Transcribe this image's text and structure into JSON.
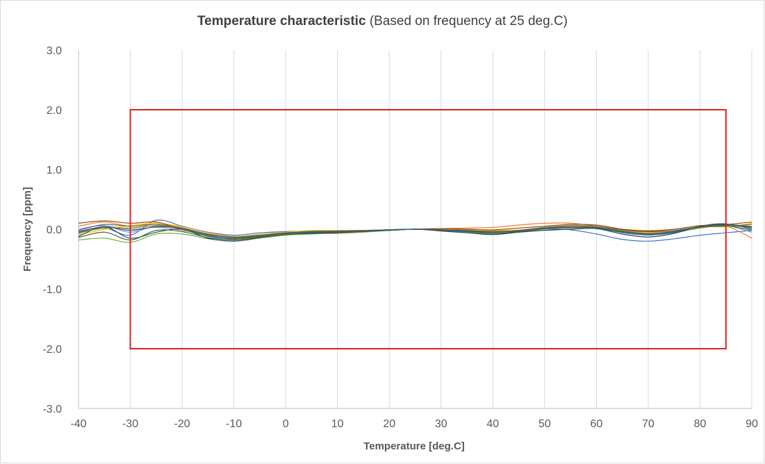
{
  "chart_data": {
    "type": "line",
    "title": "Temperature characteristic",
    "subtitle": "(Based on frequency at 25 deg.C)",
    "xlabel": "Temperature [deg.C]",
    "ylabel": "Frequency [ppm]",
    "xlim": [
      -40,
      90
    ],
    "ylim": [
      -3.0,
      3.0
    ],
    "x_ticks": [
      "-40",
      "-30",
      "-20",
      "-10",
      "0",
      "10",
      "20",
      "30",
      "40",
      "50",
      "60",
      "70",
      "80",
      "90"
    ],
    "y_ticks": [
      "3.0",
      "2.0",
      "1.0",
      "0.0",
      "-1.0",
      "-2.0",
      "-3.0"
    ],
    "grid": "vertical",
    "legend": "none",
    "spec_box": {
      "x": [
        -30,
        85
      ],
      "y": [
        -2.0,
        2.0
      ],
      "color": "#e02020"
    },
    "x": [
      -40,
      -35,
      -30,
      -25,
      -20,
      -15,
      -10,
      -5,
      0,
      5,
      10,
      15,
      20,
      25,
      30,
      35,
      40,
      45,
      50,
      55,
      60,
      65,
      70,
      75,
      80,
      85,
      90
    ],
    "series": [
      {
        "color": "#4472c4",
        "values": [
          -0.05,
          0.02,
          -0.1,
          0.15,
          0.05,
          -0.05,
          -0.1,
          -0.06,
          -0.04,
          -0.03,
          -0.02,
          -0.02,
          -0.01,
          0.0,
          -0.01,
          -0.02,
          -0.03,
          -0.02,
          0.0,
          -0.01,
          -0.08,
          -0.17,
          -0.2,
          -0.16,
          -0.1,
          -0.06,
          -0.02
        ]
      },
      {
        "color": "#ed7d31",
        "values": [
          0.05,
          0.12,
          0.05,
          0.1,
          0.02,
          -0.08,
          -0.14,
          -0.11,
          -0.08,
          -0.07,
          -0.07,
          -0.05,
          -0.02,
          0.0,
          0.01,
          0.02,
          0.03,
          0.07,
          0.1,
          0.1,
          0.05,
          -0.02,
          -0.05,
          -0.03,
          0.02,
          0.05,
          -0.15
        ]
      },
      {
        "color": "#a5a5a5",
        "values": [
          -0.08,
          0.05,
          0.0,
          0.03,
          -0.02,
          -0.1,
          -0.15,
          -0.11,
          -0.07,
          -0.05,
          -0.04,
          -0.03,
          -0.01,
          0.0,
          -0.02,
          -0.04,
          -0.06,
          -0.04,
          0.02,
          0.04,
          0.03,
          -0.04,
          -0.08,
          -0.05,
          0.04,
          0.07,
          0.05
        ]
      },
      {
        "color": "#ffc000",
        "values": [
          -0.1,
          0.0,
          0.06,
          0.1,
          0.04,
          -0.06,
          -0.12,
          -0.08,
          -0.05,
          -0.02,
          -0.02,
          -0.02,
          -0.01,
          0.0,
          0.0,
          -0.01,
          -0.02,
          -0.01,
          0.03,
          0.05,
          0.04,
          0.0,
          -0.02,
          0.0,
          0.05,
          0.04,
          0.1
        ]
      },
      {
        "color": "#5b9bd5",
        "values": [
          0.0,
          0.06,
          -0.05,
          0.05,
          0.0,
          -0.12,
          -0.17,
          -0.12,
          -0.08,
          -0.05,
          -0.05,
          -0.04,
          -0.02,
          0.0,
          -0.01,
          -0.03,
          -0.05,
          -0.03,
          0.01,
          0.03,
          0.02,
          -0.06,
          -0.1,
          -0.06,
          0.02,
          0.06,
          -0.05
        ]
      },
      {
        "color": "#70ad47",
        "values": [
          -0.18,
          -0.15,
          -0.22,
          -0.08,
          -0.08,
          -0.16,
          -0.2,
          -0.15,
          -0.1,
          -0.08,
          -0.06,
          -0.04,
          -0.02,
          0.0,
          -0.02,
          -0.05,
          -0.08,
          -0.05,
          0.0,
          0.02,
          0.01,
          -0.05,
          -0.08,
          -0.05,
          0.02,
          0.07,
          0.02
        ]
      },
      {
        "color": "#264478",
        "values": [
          -0.12,
          0.04,
          -0.15,
          -0.05,
          0.0,
          -0.15,
          -0.2,
          -0.14,
          -0.09,
          -0.07,
          -0.06,
          -0.04,
          -0.02,
          0.0,
          -0.03,
          -0.06,
          -0.09,
          -0.05,
          -0.02,
          0.0,
          0.01,
          -0.08,
          -0.13,
          -0.07,
          0.05,
          0.09,
          0.0
        ]
      },
      {
        "color": "#9e480e",
        "values": [
          0.1,
          0.14,
          0.1,
          0.12,
          0.0,
          -0.09,
          -0.13,
          -0.1,
          -0.07,
          -0.05,
          -0.04,
          -0.03,
          -0.01,
          0.0,
          0.01,
          0.0,
          -0.01,
          0.02,
          0.05,
          0.08,
          0.07,
          0.0,
          -0.03,
          0.0,
          0.06,
          0.08,
          0.12
        ]
      },
      {
        "color": "#636363",
        "values": [
          -0.02,
          0.08,
          0.05,
          0.08,
          0.02,
          -0.08,
          -0.13,
          -0.1,
          -0.06,
          -0.04,
          -0.03,
          -0.02,
          -0.01,
          0.0,
          -0.01,
          -0.02,
          -0.04,
          -0.02,
          0.03,
          0.06,
          0.05,
          -0.01,
          -0.04,
          -0.02,
          0.04,
          0.06,
          0.03
        ]
      },
      {
        "color": "#997300",
        "values": [
          -0.06,
          0.02,
          0.02,
          0.06,
          0.02,
          -0.1,
          -0.16,
          -0.12,
          -0.08,
          -0.05,
          -0.04,
          -0.03,
          -0.01,
          0.0,
          -0.01,
          -0.03,
          -0.04,
          -0.03,
          0.02,
          0.04,
          0.03,
          -0.03,
          -0.07,
          -0.04,
          0.03,
          0.05,
          0.08
        ]
      },
      {
        "color": "#43682b",
        "values": [
          -0.14,
          -0.05,
          -0.18,
          -0.02,
          -0.04,
          -0.14,
          -0.18,
          -0.13,
          -0.09,
          -0.06,
          -0.05,
          -0.04,
          -0.02,
          0.0,
          -0.02,
          -0.04,
          -0.07,
          -0.04,
          0.01,
          0.03,
          0.02,
          -0.05,
          -0.09,
          -0.05,
          0.04,
          0.06,
          -0.02
        ]
      },
      {
        "color": "#255e91",
        "values": [
          -0.04,
          0.04,
          -0.02,
          0.04,
          0.01,
          -0.11,
          -0.15,
          -0.11,
          -0.07,
          -0.05,
          -0.04,
          -0.03,
          -0.01,
          0.0,
          -0.01,
          -0.03,
          -0.05,
          -0.03,
          0.01,
          0.03,
          0.03,
          -0.04,
          -0.08,
          -0.04,
          0.04,
          0.08,
          0.04
        ]
      }
    ]
  }
}
